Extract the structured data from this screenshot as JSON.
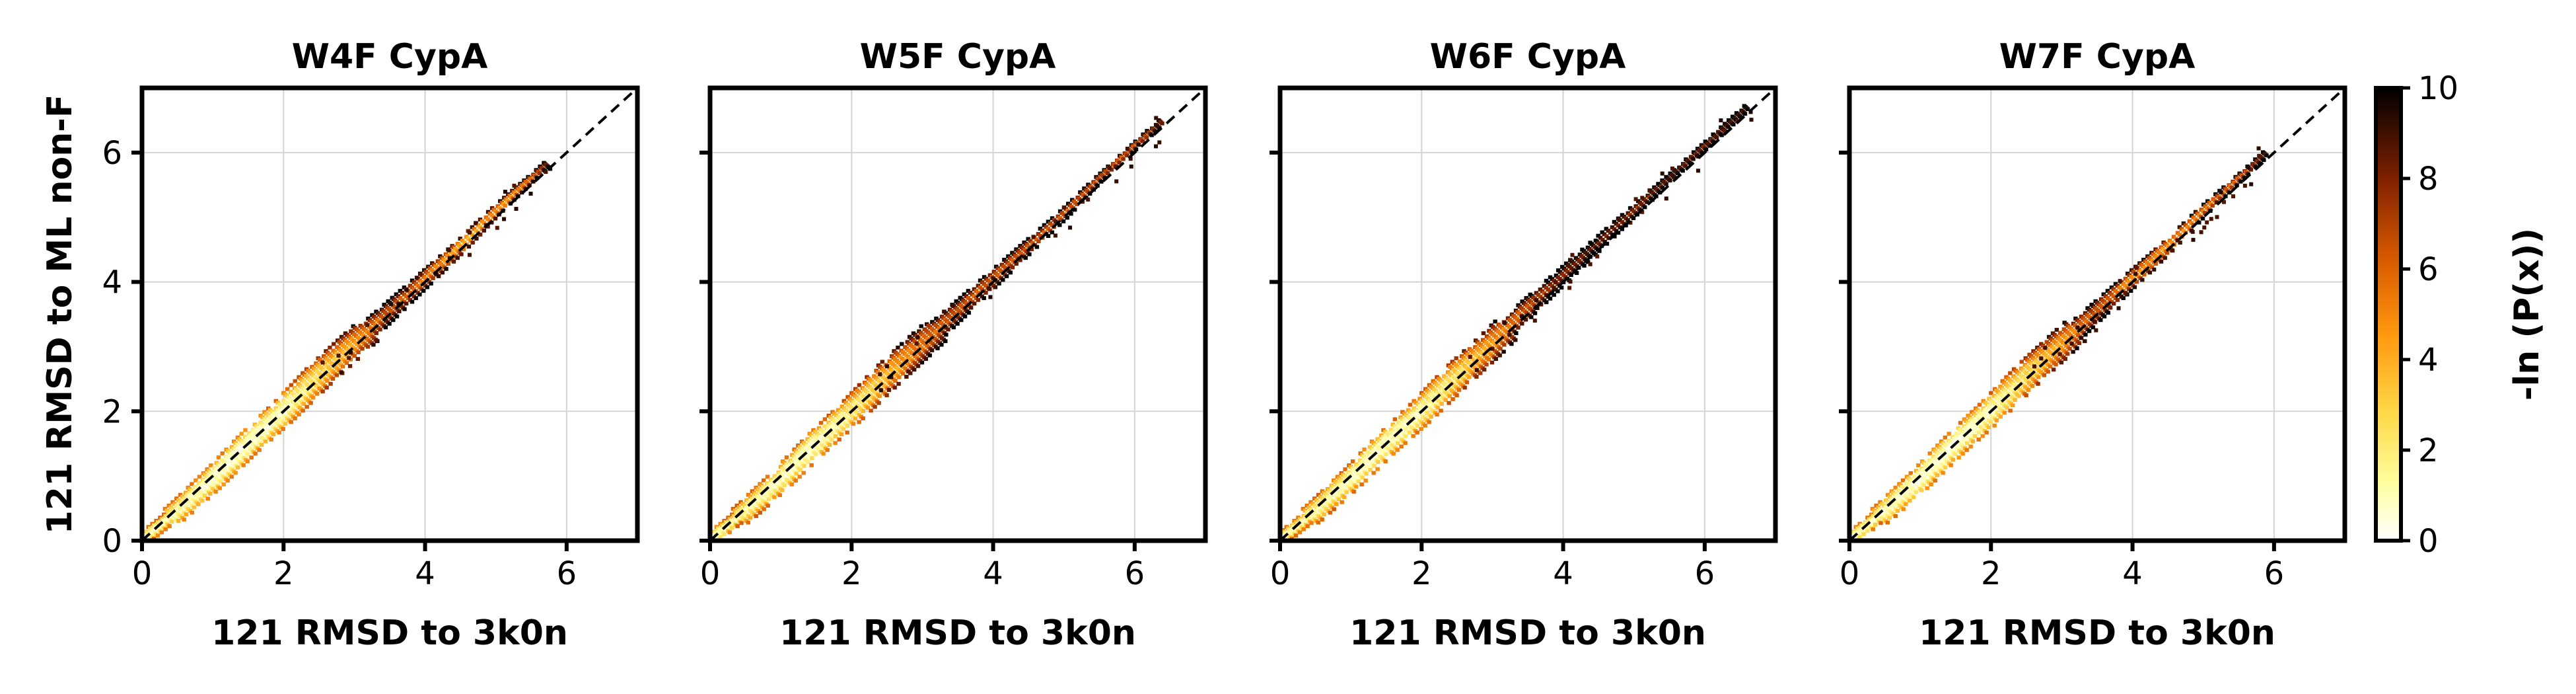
{
  "chart_data": {
    "type": "heatmap",
    "description_kind": "2D histogram density, -ln(P(x))",
    "colormap": "afmhot_r",
    "colorbar": {
      "label": "-ln (P(x))",
      "range": [
        0,
        10
      ],
      "ticks": [
        0,
        2,
        4,
        6,
        8,
        10
      ]
    },
    "reference_line": {
      "style": "dashed",
      "color": "#000000",
      "from": [
        0,
        0
      ],
      "to": [
        7,
        7
      ]
    },
    "grid": true,
    "xlim": [
      0,
      7
    ],
    "ylim": [
      0,
      7
    ],
    "xticks": [
      0,
      2,
      4,
      6
    ],
    "yticks": [
      0,
      2,
      4,
      6
    ],
    "xlabel": "121 RMSD to 3k0n",
    "ylabel": "121 RMSD to ML non-F",
    "panels": [
      {
        "title": "W4F CypA",
        "ridge": [
          {
            "x": 0.1,
            "y": 0.1,
            "v": 0.8
          },
          {
            "x": 0.5,
            "y": 0.45,
            "v": 1.2
          },
          {
            "x": 1.0,
            "y": 0.95,
            "v": 0.6
          },
          {
            "x": 1.5,
            "y": 1.5,
            "v": 0.5
          },
          {
            "x": 2.0,
            "y": 2.0,
            "v": 1.0
          },
          {
            "x": 2.5,
            "y": 2.55,
            "v": 2.5
          },
          {
            "x": 3.0,
            "y": 3.05,
            "v": 4.5
          },
          {
            "x": 3.5,
            "y": 3.55,
            "v": 6.5
          },
          {
            "x": 4.0,
            "y": 4.05,
            "v": 5.5
          },
          {
            "x": 4.5,
            "y": 4.55,
            "v": 4.0
          },
          {
            "x": 5.0,
            "y": 5.1,
            "v": 4.5
          },
          {
            "x": 5.5,
            "y": 5.6,
            "v": 5.5
          },
          {
            "x": 5.75,
            "y": 5.85,
            "v": 8.5
          }
        ]
      },
      {
        "title": "W5F CypA",
        "ridge": [
          {
            "x": 0.1,
            "y": 0.1,
            "v": 0.8
          },
          {
            "x": 0.5,
            "y": 0.45,
            "v": 1.5
          },
          {
            "x": 1.0,
            "y": 0.95,
            "v": 1.0
          },
          {
            "x": 1.5,
            "y": 1.5,
            "v": 0.8
          },
          {
            "x": 2.0,
            "y": 2.0,
            "v": 1.8
          },
          {
            "x": 2.5,
            "y": 2.55,
            "v": 3.5
          },
          {
            "x": 3.0,
            "y": 3.05,
            "v": 5.5
          },
          {
            "x": 3.5,
            "y": 3.55,
            "v": 6.5
          },
          {
            "x": 4.0,
            "y": 4.05,
            "v": 6.0
          },
          {
            "x": 4.5,
            "y": 4.55,
            "v": 6.5
          },
          {
            "x": 5.0,
            "y": 5.05,
            "v": 6.0
          },
          {
            "x": 5.5,
            "y": 5.6,
            "v": 6.5
          },
          {
            "x": 6.0,
            "y": 6.1,
            "v": 6.0
          },
          {
            "x": 6.4,
            "y": 6.5,
            "v": 8.0
          }
        ]
      },
      {
        "title": "W6F CypA",
        "ridge": [
          {
            "x": 0.1,
            "y": 0.1,
            "v": 1.0
          },
          {
            "x": 0.5,
            "y": 0.45,
            "v": 1.5
          },
          {
            "x": 1.0,
            "y": 0.95,
            "v": 1.0
          },
          {
            "x": 1.5,
            "y": 1.5,
            "v": 0.8
          },
          {
            "x": 2.0,
            "y": 2.0,
            "v": 1.2
          },
          {
            "x": 2.5,
            "y": 2.55,
            "v": 2.5
          },
          {
            "x": 3.0,
            "y": 3.05,
            "v": 4.5
          },
          {
            "x": 3.5,
            "y": 3.6,
            "v": 6.5
          },
          {
            "x": 4.0,
            "y": 4.1,
            "v": 8.0
          },
          {
            "x": 4.5,
            "y": 4.6,
            "v": 8.5
          },
          {
            "x": 5.0,
            "y": 5.1,
            "v": 7.5
          },
          {
            "x": 5.5,
            "y": 5.6,
            "v": 8.5
          },
          {
            "x": 6.0,
            "y": 6.1,
            "v": 8.0
          },
          {
            "x": 6.6,
            "y": 6.7,
            "v": 9.0
          }
        ]
      },
      {
        "title": "W7F CypA",
        "ridge": [
          {
            "x": 0.1,
            "y": 0.1,
            "v": 0.8
          },
          {
            "x": 0.5,
            "y": 0.45,
            "v": 1.0
          },
          {
            "x": 1.0,
            "y": 0.95,
            "v": 0.5
          },
          {
            "x": 1.5,
            "y": 1.5,
            "v": 0.5
          },
          {
            "x": 2.0,
            "y": 2.0,
            "v": 1.0
          },
          {
            "x": 2.5,
            "y": 2.55,
            "v": 2.5
          },
          {
            "x": 3.0,
            "y": 3.05,
            "v": 4.5
          },
          {
            "x": 3.5,
            "y": 3.55,
            "v": 6.5
          },
          {
            "x": 4.0,
            "y": 4.05,
            "v": 5.0
          },
          {
            "x": 4.5,
            "y": 4.55,
            "v": 4.5
          },
          {
            "x": 5.0,
            "y": 5.1,
            "v": 5.5
          },
          {
            "x": 5.5,
            "y": 5.6,
            "v": 6.0
          },
          {
            "x": 5.9,
            "y": 6.0,
            "v": 8.5
          }
        ]
      }
    ]
  }
}
